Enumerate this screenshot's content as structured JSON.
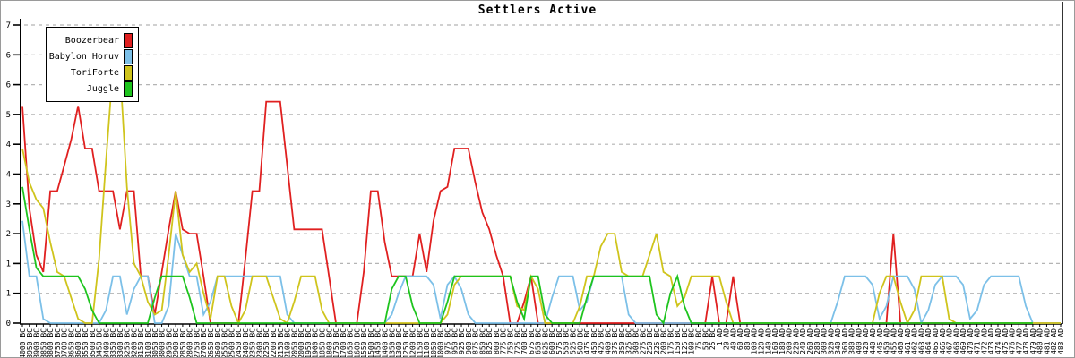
{
  "title": "Settlers Active",
  "axes": {
    "y_tick_labels": [
      "0",
      "1",
      "1",
      "2",
      "3",
      "4",
      "4",
      "5",
      "6",
      "6",
      "7"
    ],
    "y_tick_values": [
      0,
      0.7,
      1.4,
      2.1,
      2.8,
      3.5,
      4.2,
      4.9,
      5.6,
      6.3,
      7
    ]
  },
  "colors": {
    "grid": "#b4b4b4",
    "axis": "#000000",
    "background": "#ffffff",
    "border": "#9a9a9a"
  },
  "chart_data": {
    "type": "line",
    "title": "Settlers Active",
    "ylim": [
      0,
      7
    ],
    "grid": "horizontal-dashed",
    "legend_position": "top-left",
    "y_tick_values": [
      0,
      0.7,
      1.4,
      2.1,
      2.8,
      3.5,
      4.2,
      4.9,
      5.6,
      6.3,
      7
    ],
    "y_tick_labels": [
      "0",
      "1",
      "1",
      "2",
      "3",
      "4",
      "4",
      "5",
      "6",
      "6",
      "7"
    ],
    "x_tick_labels": [
      "4000 BC",
      "3950 BC",
      "3900 BC",
      "3850 BC",
      "3800 BC",
      "3750 BC",
      "3700 BC",
      "3650 BC",
      "3600 BC",
      "3550 BC",
      "3500 BC",
      "3450 BC",
      "3400 BC",
      "3350 BC",
      "3300 BC",
      "3250 BC",
      "3200 BC",
      "3150 BC",
      "3100 BC",
      "3050 BC",
      "3000 BC",
      "2950 BC",
      "2900 BC",
      "2850 BC",
      "2800 BC",
      "2750 BC",
      "2700 BC",
      "2650 BC",
      "2600 BC",
      "2550 BC",
      "2500 BC",
      "2450 BC",
      "2400 BC",
      "2350 BC",
      "2300 BC",
      "2250 BC",
      "2200 BC",
      "2150 BC",
      "2100 BC",
      "2050 BC",
      "2000 BC",
      "1950 BC",
      "1900 BC",
      "1850 BC",
      "1800 BC",
      "1750 BC",
      "1700 BC",
      "1650 BC",
      "1600 BC",
      "1550 BC",
      "1500 BC",
      "1450 BC",
      "1400 BC",
      "1350 BC",
      "1300 BC",
      "1250 BC",
      "1200 BC",
      "1150 BC",
      "1100 BC",
      "1050 BC",
      "1000 BC",
      "975 BC",
      "950 BC",
      "925 BC",
      "900 BC",
      "875 BC",
      "850 BC",
      "825 BC",
      "800 BC",
      "775 BC",
      "750 BC",
      "725 BC",
      "700 BC",
      "675 BC",
      "650 BC",
      "625 BC",
      "600 BC",
      "575 BC",
      "550 BC",
      "525 BC",
      "500 BC",
      "475 BC",
      "450 BC",
      "425 BC",
      "400 BC",
      "375 BC",
      "350 BC",
      "325 BC",
      "300 BC",
      "275 BC",
      "250 BC",
      "225 BC",
      "200 BC",
      "175 BC",
      "150 BC",
      "125 BC",
      "100 BC",
      "75 BC",
      "50 BC",
      "25 BC",
      "1 AD",
      "20 AD",
      "40 AD",
      "60 AD",
      "80 AD",
      "100 AD",
      "120 AD",
      "140 AD",
      "160 AD",
      "180 AD",
      "200 AD",
      "220 AD",
      "240 AD",
      "260 AD",
      "280 AD",
      "300 AD",
      "320 AD",
      "340 AD",
      "360 AD",
      "380 AD",
      "400 AD",
      "420 AD",
      "440 AD",
      "445 AD",
      "450 AD",
      "455 AD",
      "460 AD",
      "461 AD",
      "462 AD",
      "463 AD",
      "464 AD",
      "465 AD",
      "466 AD",
      "467 AD",
      "468 AD",
      "469 AD",
      "470 AD",
      "471 AD",
      "472 AD",
      "473 AD",
      "474 AD",
      "475 AD",
      "476 AD",
      "477 AD",
      "478 AD",
      "479 AD",
      "480 AD",
      "481 AD",
      "482 AD",
      "483 AD"
    ],
    "series": [
      {
        "name": "Boozerbear",
        "color": "#e02020",
        "values": [
          5.1,
          2.7,
          1.6,
          1.2,
          3.1,
          3.1,
          3.7,
          4.3,
          5.1,
          4.1,
          4.1,
          3.1,
          3.1,
          3.1,
          2.2,
          3.1,
          3.1,
          1.1,
          1.1,
          0.2,
          1.2,
          2.2,
          3.1,
          2.2,
          2.1,
          2.1,
          1.1,
          0,
          0,
          0,
          0,
          0,
          1.5,
          3.1,
          3.1,
          5.2,
          5.2,
          5.2,
          3.7,
          2.2,
          2.2,
          2.2,
          2.2,
          2.2,
          1.1,
          0,
          0,
          0,
          0,
          1.2,
          3.1,
          3.1,
          1.9,
          1.1,
          1.1,
          1.1,
          1.1,
          2.1,
          1.2,
          2.4,
          3.1,
          3.2,
          4.1,
          4.1,
          4.1,
          3.3,
          2.6,
          2.2,
          1.6,
          1.1,
          0,
          0,
          0.5,
          1.1,
          0,
          0,
          0,
          0,
          0,
          0,
          0,
          0,
          0,
          0,
          0,
          0,
          0,
          0,
          0,
          0,
          0,
          0,
          0,
          0,
          0,
          0,
          0,
          0,
          0,
          1.1,
          0,
          0,
          1.1,
          0,
          0,
          0,
          0,
          0,
          0,
          0,
          0,
          0,
          0,
          0,
          0,
          0,
          0,
          0,
          0,
          0,
          0,
          0,
          0,
          0,
          0,
          2.1,
          0,
          0,
          0,
          0,
          0,
          0,
          0,
          0,
          0,
          0,
          0,
          0,
          0,
          0,
          0,
          0,
          0,
          0,
          0,
          0,
          0,
          0,
          0,
          0
        ]
      },
      {
        "name": "Babylon Horuv",
        "color": "#7cc0e8",
        "values": [
          2.4,
          1.1,
          1.1,
          0.1,
          0,
          0,
          0,
          0,
          0,
          0,
          0,
          0,
          0.3,
          1.1,
          1.1,
          0.2,
          0.8,
          1.1,
          1.1,
          0,
          0,
          0.4,
          2.1,
          1.6,
          1.1,
          1.1,
          0.2,
          0.5,
          1.1,
          1.1,
          1.1,
          1.1,
          1.1,
          1.1,
          1.1,
          1.1,
          1.1,
          1.1,
          0.2,
          0,
          0,
          0,
          0,
          0,
          0,
          0,
          0,
          0,
          0,
          0,
          0,
          0,
          0,
          0.2,
          0.7,
          1.1,
          1.1,
          1.1,
          1.1,
          0.9,
          0.1,
          0.9,
          1.1,
          0.8,
          0.2,
          0,
          0,
          0,
          0,
          0,
          0,
          0,
          0,
          0,
          0,
          0,
          0.6,
          1.1,
          1.1,
          1.1,
          0.3,
          0.5,
          1.1,
          1.1,
          1.1,
          1.1,
          1.1,
          0.2,
          0,
          0,
          0,
          0,
          0,
          0,
          0,
          0,
          0,
          0,
          0,
          0,
          0,
          0,
          0,
          0,
          0,
          0,
          0,
          0,
          0,
          0,
          0,
          0,
          0,
          0,
          0,
          0,
          0,
          0.5,
          1.1,
          1.1,
          1.1,
          1.1,
          0.9,
          0.1,
          0.4,
          1.1,
          1.1,
          1.1,
          0.8,
          0,
          0.3,
          0.9,
          1.1,
          1.1,
          1.1,
          0.9,
          0.1,
          0.3,
          0.9,
          1.1,
          1.1,
          1.1,
          1.1,
          1.1,
          0.4,
          0,
          0,
          0,
          0,
          0
        ]
      },
      {
        "name": "ToriForte",
        "color": "#cfc41c",
        "values": [
          4.1,
          3.3,
          2.9,
          2.7,
          1.9,
          1.2,
          1.1,
          0.6,
          0.1,
          0,
          0,
          1.5,
          3.8,
          6,
          6,
          3.2,
          1.4,
          1.1,
          0.5,
          0.2,
          0.3,
          1.6,
          3.1,
          1.6,
          1.2,
          1.4,
          0.7,
          0.1,
          1.1,
          1.1,
          0.4,
          0,
          0.3,
          1.1,
          1.1,
          1.1,
          0.6,
          0.1,
          0,
          0.5,
          1.1,
          1.1,
          1.1,
          0.3,
          0,
          0,
          0,
          0,
          0,
          0,
          0,
          0,
          0,
          0,
          0,
          0,
          0,
          0,
          0,
          0,
          0,
          0.2,
          0.9,
          1.1,
          1.1,
          1.1,
          1.1,
          1.1,
          1.1,
          1.1,
          1.1,
          0.4,
          0.3,
          1.1,
          0.8,
          0,
          0,
          0,
          0,
          0,
          0.4,
          1.1,
          1.1,
          1.8,
          2.1,
          2.1,
          1.2,
          1.1,
          1.1,
          1.1,
          1.6,
          2.1,
          1.2,
          1.1,
          0.4,
          0.6,
          1.1,
          1.1,
          1.1,
          1.1,
          1.1,
          0.5,
          0,
          0,
          0,
          0,
          0,
          0,
          0,
          0,
          0,
          0,
          0,
          0,
          0,
          0,
          0,
          0,
          0,
          0,
          0,
          0,
          0,
          0.7,
          1.1,
          1.1,
          0.5,
          0,
          0.3,
          1.1,
          1.1,
          1.1,
          1.1,
          0.1,
          0,
          0,
          0,
          0,
          0,
          0,
          0,
          0,
          0,
          0,
          0,
          0,
          0,
          0,
          0,
          0
        ]
      },
      {
        "name": "Juggle",
        "color": "#1ec41e",
        "values": [
          3.2,
          2.2,
          1.3,
          1.1,
          1.1,
          1.1,
          1.1,
          1.1,
          1.1,
          0.8,
          0.3,
          0,
          0,
          0,
          0,
          0,
          0,
          0,
          0,
          0.6,
          1.1,
          1.1,
          1.1,
          1.1,
          0.6,
          0,
          0,
          0,
          0,
          0,
          0,
          0,
          0,
          0,
          0,
          0,
          0,
          0,
          0,
          0,
          0,
          0,
          0,
          0,
          0,
          0,
          0,
          0,
          0,
          0,
          0,
          0,
          0,
          0.8,
          1.1,
          1.1,
          0.4,
          0,
          0,
          0,
          0,
          0.5,
          1.1,
          1.1,
          1.1,
          1.1,
          1.1,
          1.1,
          1.1,
          1.1,
          1.1,
          0.5,
          0.1,
          1.1,
          1.1,
          0.2,
          0,
          0,
          0,
          0,
          0,
          0.6,
          1.1,
          1.1,
          1.1,
          1.1,
          1.1,
          1.1,
          1.1,
          1.1,
          1.1,
          0.2,
          0,
          0.7,
          1.1,
          0.4,
          0,
          0,
          0,
          0,
          0,
          0,
          0,
          0,
          0,
          0,
          0,
          0,
          0,
          0,
          0,
          0,
          0,
          0,
          0,
          0,
          0,
          0,
          0,
          0,
          0,
          0,
          0,
          0,
          0,
          0,
          0,
          0,
          0,
          0,
          0,
          0,
          0,
          0,
          0,
          0,
          0,
          0,
          0,
          0,
          0,
          0,
          0,
          0,
          0,
          0,
          null,
          null,
          null,
          null
        ]
      }
    ]
  }
}
